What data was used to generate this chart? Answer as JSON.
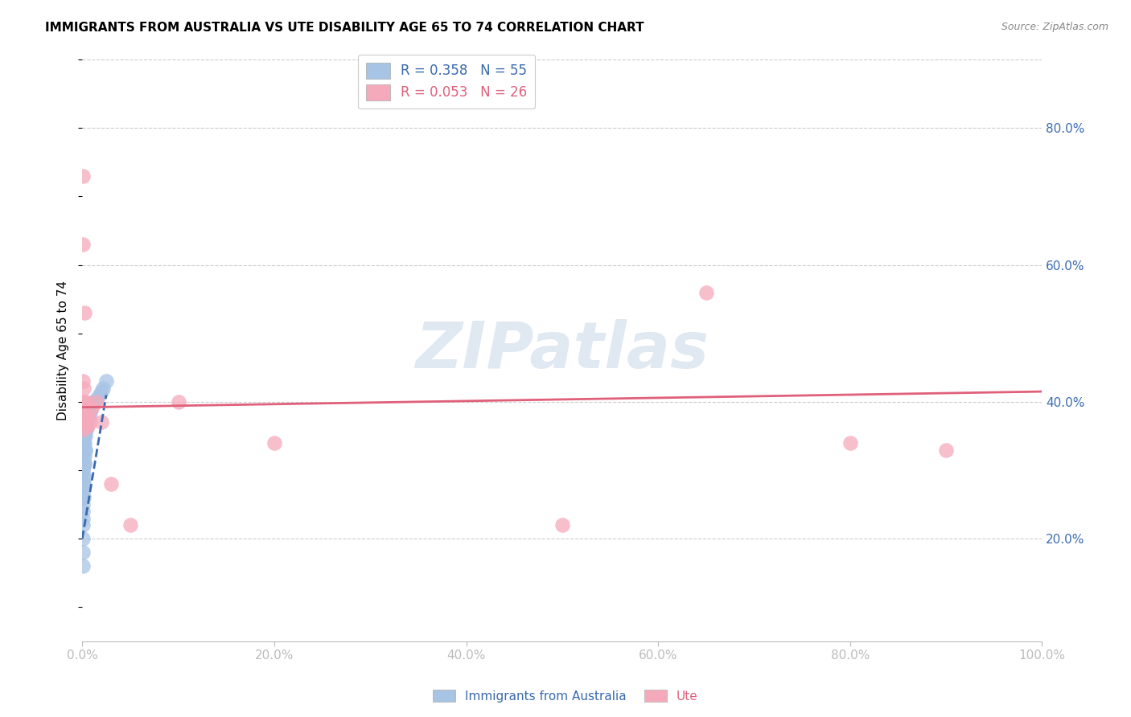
{
  "title": "IMMIGRANTS FROM AUSTRALIA VS UTE DISABILITY AGE 65 TO 74 CORRELATION CHART",
  "source": "Source: ZipAtlas.com",
  "xlabel_vals": [
    0,
    20,
    40,
    60,
    80,
    100
  ],
  "ylabel": "Disability Age 65 to 74",
  "ylabel_vals": [
    20,
    40,
    60,
    80
  ],
  "xmin": 0,
  "xmax": 100,
  "ymin": 5,
  "ymax": 90,
  "blue_color": "#a8c4e5",
  "pink_color": "#f5aabb",
  "blue_line_color": "#3a6aad",
  "pink_line_color": "#e0607a",
  "watermark": "ZIPatlas",
  "legend_R_blue": "0.358",
  "legend_N_blue": "55",
  "legend_R_pink": "0.053",
  "legend_N_pink": "26",
  "blue_scatter_x": [
    0.05,
    0.05,
    0.05,
    0.05,
    0.05,
    0.05,
    0.05,
    0.05,
    0.05,
    0.05,
    0.05,
    0.05,
    0.05,
    0.05,
    0.05,
    0.1,
    0.1,
    0.1,
    0.1,
    0.1,
    0.1,
    0.1,
    0.15,
    0.15,
    0.15,
    0.15,
    0.2,
    0.2,
    0.2,
    0.25,
    0.25,
    0.3,
    0.3,
    0.35,
    0.4,
    0.45,
    0.5,
    0.55,
    0.6,
    0.7,
    0.8,
    0.9,
    1.0,
    1.2,
    1.5,
    1.8,
    2.0,
    2.2,
    2.5,
    0.08,
    0.12,
    0.18,
    0.22,
    0.28,
    0.38
  ],
  "blue_scatter_y": [
    24.0,
    26.0,
    28.0,
    30.0,
    32.0,
    33.0,
    34.0,
    35.0,
    36.0,
    37.0,
    38.0,
    22.0,
    20.0,
    18.0,
    16.0,
    25.0,
    27.0,
    30.0,
    33.0,
    35.0,
    37.0,
    39.0,
    28.0,
    31.0,
    34.0,
    36.0,
    29.0,
    32.0,
    35.0,
    31.0,
    34.0,
    33.0,
    36.0,
    35.0,
    36.0,
    37.0,
    37.5,
    38.0,
    38.0,
    38.0,
    38.5,
    39.0,
    39.5,
    40.0,
    40.5,
    41.0,
    41.5,
    42.0,
    43.0,
    23.0,
    26.0,
    29.0,
    31.0,
    33.0,
    36.0
  ],
  "pink_scatter_x": [
    0.05,
    0.05,
    0.08,
    0.12,
    0.15,
    0.2,
    0.25,
    0.3,
    0.35,
    0.4,
    0.5,
    0.6,
    0.8,
    1.0,
    1.5,
    2.0,
    3.0,
    5.0,
    10.0,
    20.0,
    50.0,
    65.0,
    80.0,
    90.0,
    0.18,
    0.45
  ],
  "pink_scatter_y": [
    73.0,
    43.0,
    63.0,
    40.0,
    42.0,
    40.0,
    53.0,
    37.0,
    38.0,
    40.0,
    38.0,
    36.5,
    37.0,
    39.0,
    40.0,
    37.0,
    28.0,
    22.0,
    40.0,
    34.0,
    22.0,
    56.0,
    34.0,
    33.0,
    36.0,
    38.0
  ],
  "blue_trendline_x": [
    0.0,
    2.5
  ],
  "blue_trendline_y": [
    20.0,
    41.0
  ],
  "pink_trendline_x": [
    0.0,
    100.0
  ],
  "pink_trendline_y": [
    39.2,
    41.5
  ],
  "grid_color": "#cccccc",
  "axis_tick_color": "#3a6aad"
}
